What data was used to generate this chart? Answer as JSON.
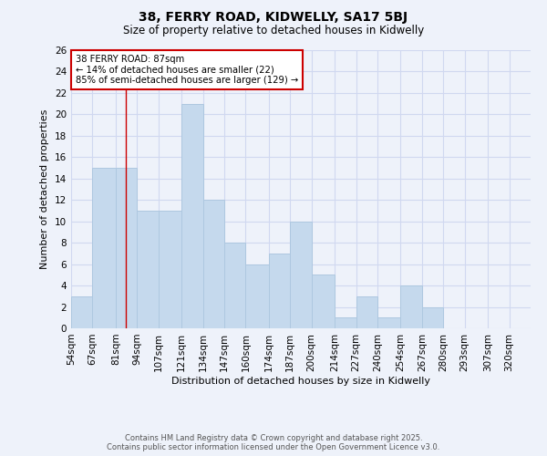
{
  "title": "38, FERRY ROAD, KIDWELLY, SA17 5BJ",
  "subtitle": "Size of property relative to detached houses in Kidwelly",
  "xlabel": "Distribution of detached houses by size in Kidwelly",
  "ylabel": "Number of detached properties",
  "bar_labels": [
    "54sqm",
    "67sqm",
    "81sqm",
    "94sqm",
    "107sqm",
    "121sqm",
    "134sqm",
    "147sqm",
    "160sqm",
    "174sqm",
    "187sqm",
    "200sqm",
    "214sqm",
    "227sqm",
    "240sqm",
    "254sqm",
    "267sqm",
    "280sqm",
    "293sqm",
    "307sqm",
    "320sqm"
  ],
  "bar_values": [
    3,
    15,
    15,
    11,
    11,
    21,
    12,
    8,
    6,
    7,
    10,
    5,
    1,
    3,
    1,
    4,
    2,
    0,
    0,
    0,
    0
  ],
  "bar_color": "#c5d9ed",
  "bar_edgecolor": "#aec8e0",
  "background_color": "#eef2fa",
  "grid_color": "#d0d8f0",
  "annotation_box_edgecolor": "#cc0000",
  "annotation_text_line1": "38 FERRY ROAD: 87sqm",
  "annotation_text_line2": "← 14% of detached houses are smaller (22)",
  "annotation_text_line3": "85% of semi-detached houses are larger (129) →",
  "vline_x_index": 2,
  "ylim": [
    0,
    26
  ],
  "yticks": [
    0,
    2,
    4,
    6,
    8,
    10,
    12,
    14,
    16,
    18,
    20,
    22,
    24,
    26
  ],
  "footer_line1": "Contains HM Land Registry data © Crown copyright and database right 2025.",
  "footer_line2": "Contains public sector information licensed under the Open Government Licence v3.0.",
  "bin_edges": [
    54,
    67,
    81,
    94,
    107,
    121,
    134,
    147,
    160,
    174,
    187,
    200,
    214,
    227,
    240,
    254,
    267,
    280,
    293,
    307,
    320,
    333
  ]
}
